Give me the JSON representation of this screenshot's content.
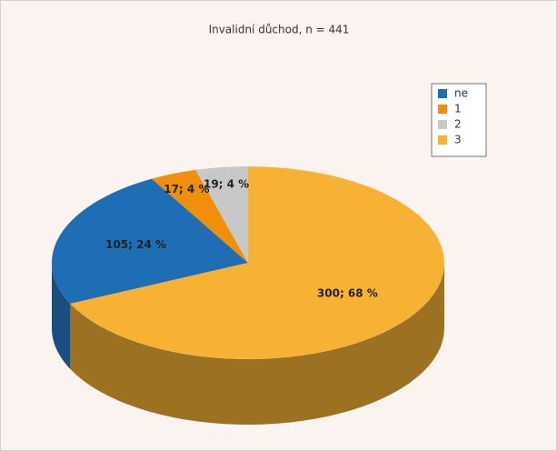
{
  "chart_data": {
    "type": "pie3d",
    "title": "Invalidní důchod, n = 441",
    "categories": [
      "ne",
      "1",
      "2",
      "3"
    ],
    "values": [
      105,
      17,
      19,
      300
    ],
    "value_labels": [
      "105; 24 %",
      "17; 4 %",
      "19; 4 %",
      "300; 68 %"
    ],
    "colors": [
      "#1f6db5",
      "#f0900a",
      "#c8c8c8",
      "#f7b234"
    ],
    "side_colors": [
      "#184f80",
      "#a8650a",
      "#8c8c8c",
      "#9c7222"
    ],
    "legend": "top-right"
  }
}
